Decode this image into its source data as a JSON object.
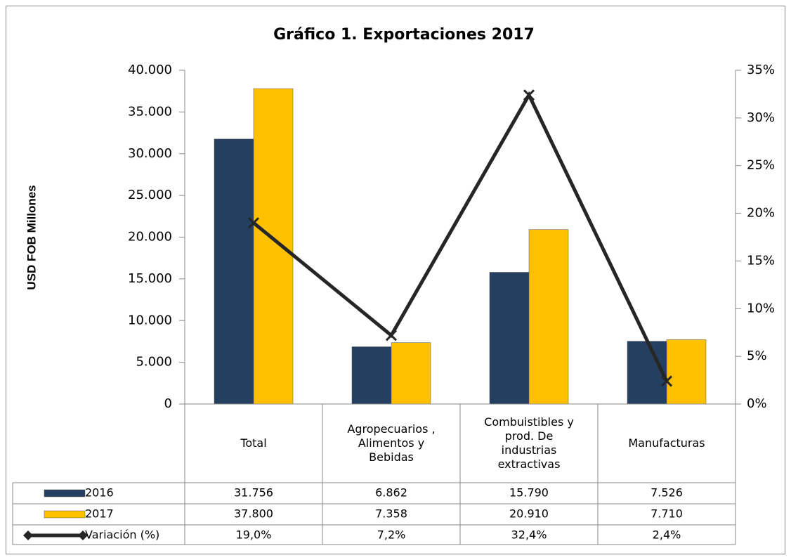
{
  "chart_data": {
    "type": "bar",
    "title": "Gráfico 1. Exportaciones  2017",
    "y_label": "USD FOB Millones",
    "categories": [
      "Total",
      "Agropecuarios , Alimentos y Bebidas",
      "Combuistibles y prod. De industrias extractivas",
      "Manufacturas"
    ],
    "series": [
      {
        "name": "2016",
        "color": "#243f60",
        "values": [
          31756,
          6862,
          15790,
          7526
        ],
        "value_labels": [
          "31.756",
          "6.862",
          "15.790",
          "7.526"
        ]
      },
      {
        "name": "2017",
        "color": "#ffc000",
        "values": [
          37800,
          7358,
          20910,
          7710
        ],
        "value_labels": [
          "37.800",
          "7.358",
          "20.910",
          "7.710"
        ]
      },
      {
        "name": "Variación (%)",
        "type": "line",
        "axis": "y2",
        "color": "#262626",
        "values": [
          19.0,
          7.2,
          32.4,
          2.4
        ],
        "value_labels": [
          "19,0%",
          "7,2%",
          "32,4%",
          "2,4%"
        ]
      }
    ],
    "ylim": [
      0,
      40000
    ],
    "yticks": [
      0,
      {
        "value": 5000,
        "label": "5.000"
      },
      {
        "value": 10000,
        "label": "10.000"
      },
      {
        "value": 15000,
        "label": "15.000"
      },
      {
        "value": 20000,
        "label": "20.000"
      },
      {
        "value": 25000,
        "label": "25.000"
      },
      {
        "value": 30000,
        "label": "30.000"
      },
      {
        "value": 35000,
        "label": "35.000"
      },
      {
        "value": 40000,
        "label": "40.000"
      }
    ],
    "y2lim": [
      0,
      35
    ],
    "y2ticks": [
      {
        "value": 0,
        "label": "0%"
      },
      {
        "value": 5,
        "label": "5%"
      },
      {
        "value": 10,
        "label": "10%"
      },
      {
        "value": 15,
        "label": "15%"
      },
      {
        "value": 20,
        "label": "20%"
      },
      {
        "value": 25,
        "label": "25%"
      },
      {
        "value": 30,
        "label": "30%"
      },
      {
        "value": 35,
        "label": "35%"
      }
    ],
    "data_table": true
  }
}
